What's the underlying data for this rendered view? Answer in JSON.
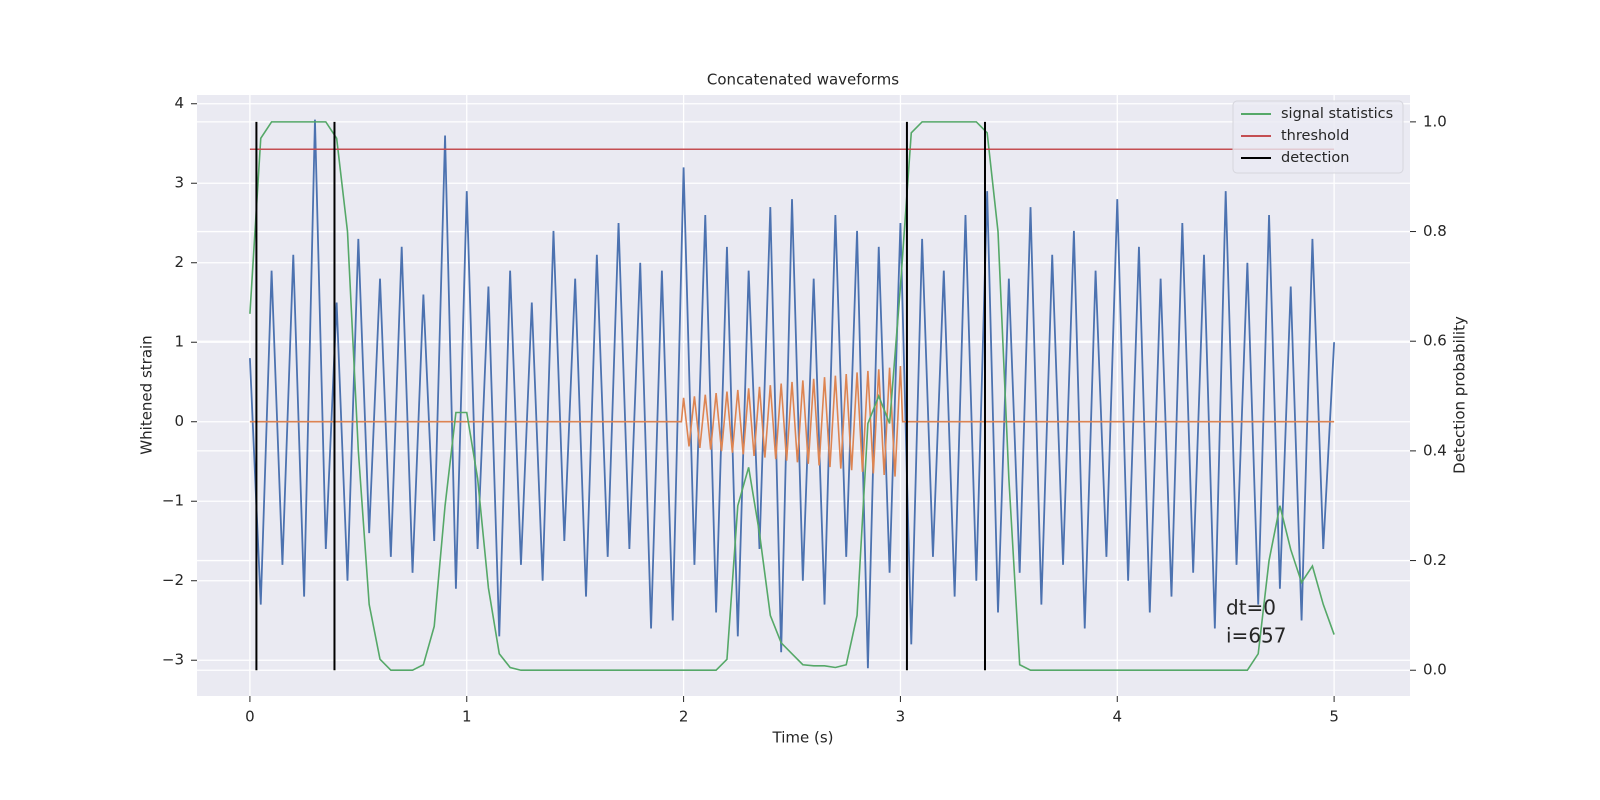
{
  "chart_data": {
    "type": "line",
    "title": "Concatenated waveforms",
    "xlabel": "Time (s)",
    "ylabel": "Whitened strain",
    "y2label": "Detection probability",
    "xlim": [
      -0.244,
      5.35
    ],
    "ylim": [
      -3.45,
      4.11
    ],
    "y2lim": [
      -0.047,
      1.049
    ],
    "xticks": [
      0,
      1,
      2,
      3,
      4,
      5
    ],
    "yticks": [
      {
        "value": -3,
        "label": "−3"
      },
      {
        "value": -2,
        "label": "−2"
      },
      {
        "value": -1,
        "label": "−1"
      },
      0,
      1,
      2,
      3,
      4
    ],
    "y2ticks": [
      {
        "value": 0,
        "label": "0.0"
      },
      0.2,
      0.4,
      0.6,
      0.8,
      {
        "value": 1,
        "label": "1.0"
      }
    ],
    "grid": true,
    "legend": "upper right",
    "annotations": [
      "dt=0",
      "i=657"
    ],
    "series": [
      {
        "color": "#4c72b0",
        "x": [
          0,
          0.05,
          0.1,
          0.15,
          0.2,
          0.25,
          0.3,
          0.35,
          0.4,
          0.45,
          0.5,
          0.55,
          0.6,
          0.65,
          0.7,
          0.75,
          0.8,
          0.85,
          0.9,
          0.95,
          1,
          1.05,
          1.1,
          1.15,
          1.2,
          1.25,
          1.3,
          1.35,
          1.4,
          1.45,
          1.5,
          1.55,
          1.6,
          1.65,
          1.7,
          1.75,
          1.8,
          1.85,
          1.9,
          1.95,
          2,
          2.05,
          2.1,
          2.15,
          2.2,
          2.25,
          2.3,
          2.35,
          2.4,
          2.45,
          2.5,
          2.55,
          2.6,
          2.65,
          2.7,
          2.75,
          2.8,
          2.85,
          2.9,
          2.95,
          3,
          3.05,
          3.1,
          3.15,
          3.2,
          3.25,
          3.3,
          3.35,
          3.4,
          3.45,
          3.5,
          3.55,
          3.6,
          3.65,
          3.7,
          3.75,
          3.8,
          3.85,
          3.9,
          3.95,
          4,
          4.05,
          4.1,
          4.15,
          4.2,
          4.25,
          4.3,
          4.35,
          4.4,
          4.45,
          4.5,
          4.55,
          4.6,
          4.65,
          4.7,
          4.75,
          4.8,
          4.85,
          4.9,
          4.95,
          5
        ],
        "values": [
          0.8,
          -2.3,
          1.9,
          -1.8,
          2.1,
          -2.2,
          3.8,
          -1.6,
          1.5,
          -2.0,
          2.3,
          -1.4,
          1.8,
          -1.7,
          2.2,
          -1.9,
          1.6,
          -1.5,
          3.6,
          -2.1,
          2.9,
          -1.6,
          1.7,
          -2.7,
          1.9,
          -1.8,
          1.5,
          -2.0,
          2.4,
          -1.5,
          1.8,
          -2.2,
          2.1,
          -1.7,
          2.5,
          -1.6,
          2.0,
          -2.6,
          1.9,
          -2.5,
          3.2,
          -1.8,
          2.6,
          -2.4,
          2.2,
          -2.7,
          1.9,
          -1.6,
          2.7,
          -2.9,
          2.8,
          -2.0,
          1.8,
          -2.3,
          2.6,
          -1.7,
          2.4,
          -3.1,
          2.2,
          -1.9,
          2.5,
          -2.8,
          2.3,
          -1.7,
          1.9,
          -2.2,
          2.6,
          -2.0,
          2.9,
          -2.4,
          1.8,
          -1.9,
          2.7,
          -2.3,
          2.1,
          -1.8,
          2.4,
          -2.6,
          1.9,
          -1.7,
          2.8,
          -2.0,
          2.2,
          -2.4,
          1.8,
          -2.2,
          2.5,
          -1.9,
          2.1,
          -2.6,
          2.9,
          -1.8,
          2.0,
          -2.3,
          2.6,
          -2.1,
          1.7,
          -2.5,
          2.3,
          -1.6,
          1.0
        ]
      },
      {
        "color": "#dd8452",
        "x": [
          0,
          1.99,
          2,
          2.025,
          2.05,
          2.075,
          2.1,
          2.125,
          2.15,
          2.175,
          2.2,
          2.225,
          2.25,
          2.275,
          2.3,
          2.325,
          2.35,
          2.375,
          2.4,
          2.425,
          2.45,
          2.475,
          2.5,
          2.525,
          2.55,
          2.575,
          2.6,
          2.625,
          2.65,
          2.675,
          2.7,
          2.725,
          2.75,
          2.775,
          2.8,
          2.825,
          2.85,
          2.875,
          2.9,
          2.925,
          2.95,
          2.975,
          3,
          3.01,
          5
        ],
        "values": [
          0,
          0,
          0.3,
          -0.31,
          0.32,
          -0.33,
          0.34,
          -0.35,
          0.36,
          -0.37,
          0.38,
          -0.39,
          0.4,
          -0.41,
          0.42,
          -0.43,
          0.44,
          -0.45,
          0.46,
          -0.47,
          0.48,
          -0.49,
          0.5,
          -0.51,
          0.52,
          -0.53,
          0.54,
          -0.55,
          0.56,
          -0.57,
          0.58,
          -0.59,
          0.6,
          -0.61,
          0.62,
          -0.63,
          0.64,
          -0.65,
          0.66,
          -0.67,
          0.68,
          -0.69,
          0.7,
          0,
          0
        ]
      },
      {
        "name": "signal statistics",
        "color": "#55a868",
        "axis": "y2",
        "x": [
          0,
          0.05,
          0.1,
          0.15,
          0.2,
          0.25,
          0.3,
          0.35,
          0.4,
          0.45,
          0.5,
          0.55,
          0.6,
          0.65,
          0.7,
          0.75,
          0.8,
          0.85,
          0.9,
          0.95,
          1,
          1.05,
          1.1,
          1.15,
          1.2,
          1.25,
          1.3,
          1.35,
          1.4,
          1.45,
          1.5,
          1.55,
          1.6,
          1.65,
          1.7,
          1.75,
          1.8,
          1.85,
          1.9,
          1.95,
          2,
          2.05,
          2.1,
          2.15,
          2.2,
          2.25,
          2.3,
          2.35,
          2.4,
          2.45,
          2.5,
          2.55,
          2.6,
          2.65,
          2.7,
          2.75,
          2.8,
          2.85,
          2.9,
          2.95,
          3,
          3.05,
          3.1,
          3.15,
          3.2,
          3.25,
          3.3,
          3.35,
          3.4,
          3.45,
          3.5,
          3.55,
          3.6,
          3.65,
          3.7,
          3.75,
          3.8,
          3.85,
          3.9,
          3.95,
          4,
          4.05,
          4.1,
          4.15,
          4.2,
          4.25,
          4.3,
          4.35,
          4.4,
          4.45,
          4.5,
          4.55,
          4.6,
          4.65,
          4.7,
          4.75,
          4.8,
          4.85,
          4.9,
          4.95,
          5
        ],
        "values": [
          0.65,
          0.97,
          1,
          1,
          1,
          1,
          1,
          1,
          0.97,
          0.8,
          0.4,
          0.12,
          0.02,
          0,
          0,
          0,
          0.01,
          0.08,
          0.3,
          0.47,
          0.47,
          0.35,
          0.15,
          0.03,
          0.005,
          0,
          0,
          0,
          0,
          0,
          0,
          0,
          0,
          0,
          0,
          0,
          0,
          0,
          0,
          0,
          0,
          0,
          0,
          0,
          0.02,
          0.3,
          0.37,
          0.25,
          0.1,
          0.05,
          0.03,
          0.01,
          0.008,
          0.008,
          0.005,
          0.01,
          0.1,
          0.45,
          0.5,
          0.45,
          0.7,
          0.98,
          1,
          1,
          1,
          1,
          1,
          1,
          0.98,
          0.8,
          0.35,
          0.01,
          0,
          0,
          0,
          0,
          0,
          0,
          0,
          0,
          0,
          0,
          0,
          0,
          0,
          0,
          0,
          0,
          0,
          0,
          0,
          0,
          0,
          0.03,
          0.2,
          0.3,
          0.22,
          0.16,
          0.19,
          0.12,
          0.065
        ]
      }
    ],
    "threshold": {
      "name": "threshold",
      "color": "#c44e52",
      "value": 0.95,
      "x": [
        0,
        5
      ]
    },
    "detection": {
      "name": "detection",
      "color": "#000000",
      "x": [
        0.03,
        0.39,
        3.03,
        3.39
      ],
      "span": [
        0,
        1
      ]
    }
  }
}
